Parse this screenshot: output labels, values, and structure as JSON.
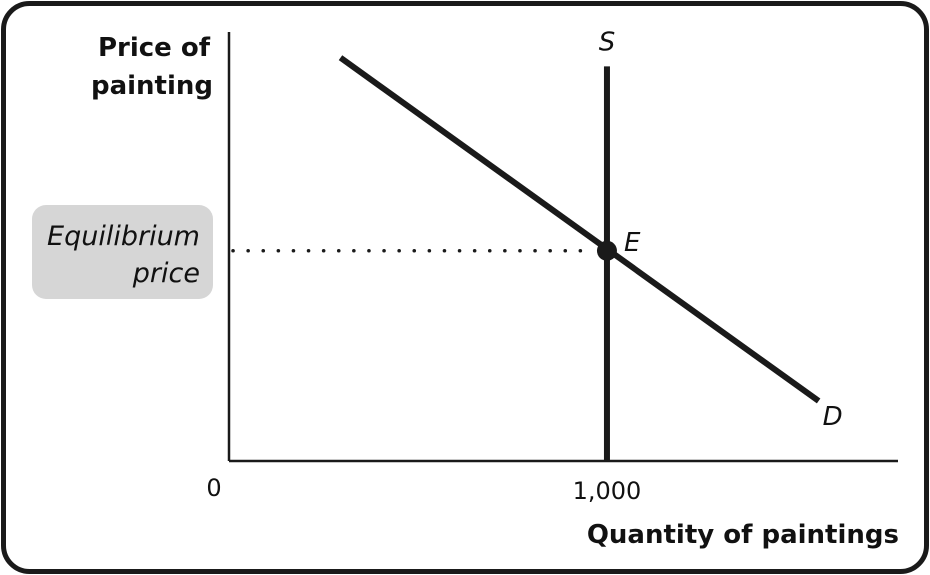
{
  "chart_data": {
    "type": "line",
    "ylabel_line1": "Price of",
    "ylabel_line2": "painting",
    "xlabel": "Quantity of paintings",
    "x_origin_label": "0",
    "x_ticks": [
      {
        "value": 1000,
        "label": "1,000"
      }
    ],
    "xlim": [
      0,
      1770
    ],
    "ylim": [
      0,
      100
    ],
    "series": [
      {
        "name": "S",
        "points": [
          [
            1000,
            0
          ],
          [
            1000,
            92
          ]
        ]
      },
      {
        "name": "D",
        "points": [
          [
            295,
            94
          ],
          [
            1560,
            14
          ]
        ]
      }
    ],
    "equilibrium": {
      "label": "E",
      "x": 1000,
      "y": 49,
      "price_label_line1": "Equilibrium",
      "price_label_line2": "price"
    },
    "grid": false,
    "colors": {
      "curve": "#1a1a1a",
      "frame": "#1a1a1a",
      "price_box": "#d6d6d6"
    }
  }
}
